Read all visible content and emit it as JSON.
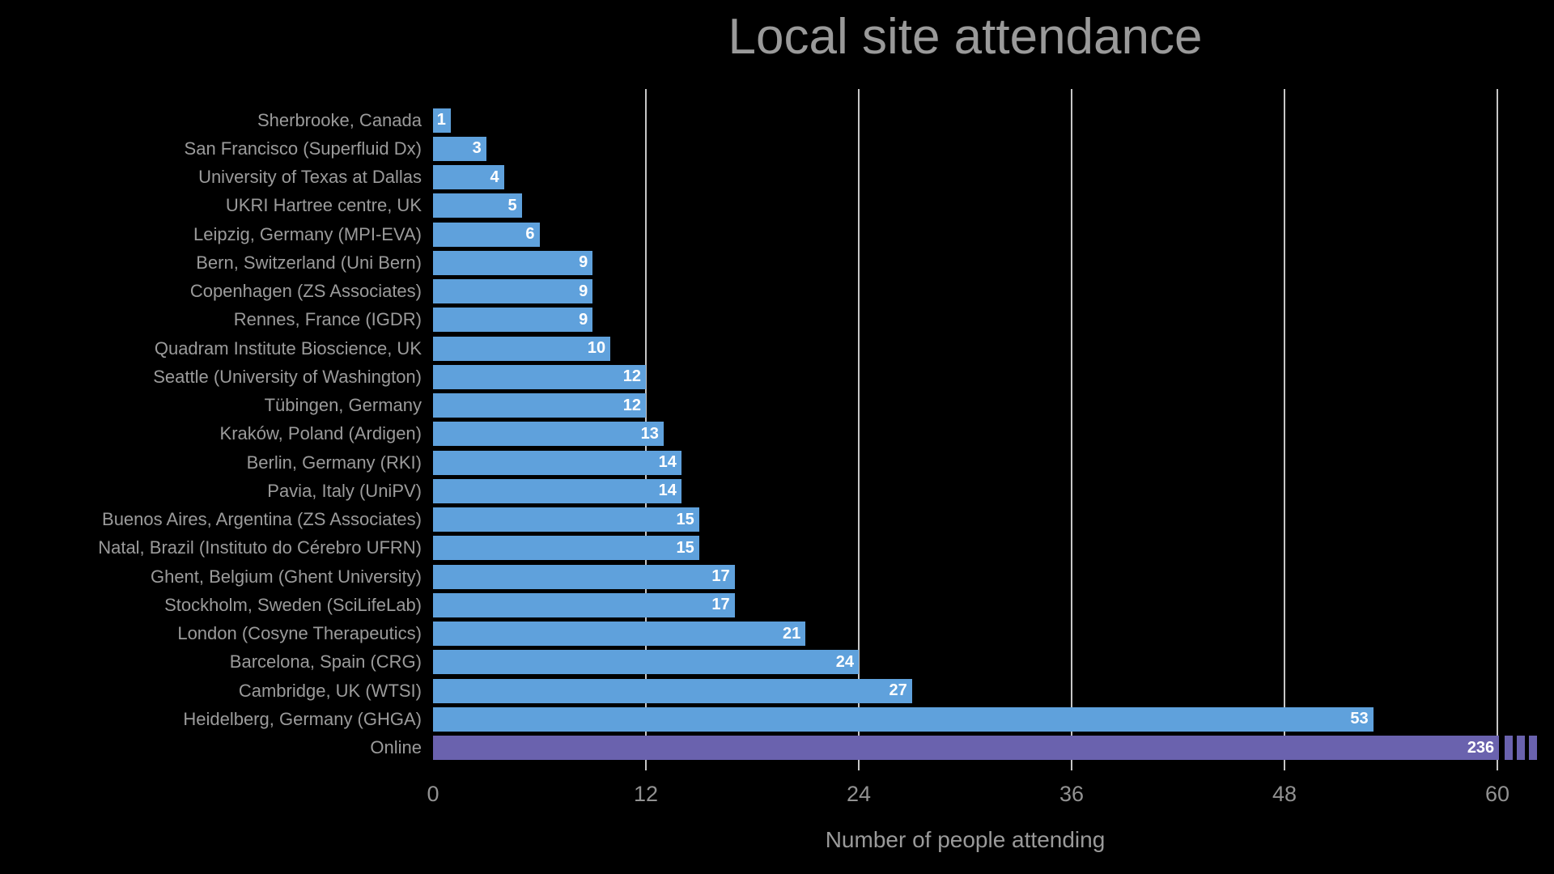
{
  "chart_data": {
    "type": "bar",
    "orientation": "horizontal",
    "title": "Local site attendance",
    "xlabel": "Number of people attending",
    "xlim": [
      0,
      60
    ],
    "xticks": [
      0,
      12,
      24,
      36,
      48,
      60
    ],
    "grid": "vertical gridlines at 12, 24, 36, 48, 60",
    "legend_position": "none",
    "categories": [
      "Sherbrooke, Canada",
      "San Francisco (Superfluid Dx)",
      "University of Texas at Dallas",
      "UKRI Hartree centre, UK",
      "Leipzig, Germany (MPI-EVA)",
      "Bern, Switzerland (Uni Bern)",
      "Copenhagen (ZS Associates)",
      "Rennes, France (IGDR)",
      "Quadram Institute Bioscience, UK",
      "Seattle (University of Washington)",
      "Tübingen, Germany",
      "Kraków, Poland (Ardigen)",
      "Berlin, Germany (RKI)",
      "Pavia, Italy (UniPV)",
      "Buenos Aires, Argentina (ZS Associates)",
      "Natal, Brazil (Instituto do Cérebro UFRN)",
      "Ghent, Belgium (Ghent University)",
      "Stockholm, Sweden (SciLifeLab)",
      "London (Cosyne Therapeutics)",
      "Barcelona, Spain (CRG)",
      "Cambridge, UK (WTSI)",
      "Heidelberg, Germany (GHGA)",
      "Online"
    ],
    "values": [
      1,
      3,
      4,
      5,
      6,
      9,
      9,
      9,
      10,
      12,
      12,
      13,
      14,
      14,
      15,
      15,
      17,
      17,
      21,
      24,
      27,
      53,
      236
    ],
    "clipped_bar": {
      "category": "Online",
      "value": 236,
      "clipped_at_axis_value": 60,
      "break_marks": 3
    },
    "colors": {
      "background": "#000000",
      "bar_default": "#5FA1DC",
      "bar_online": "#6A62AE",
      "value_label": "#ffffff",
      "text": "#9a9a9a",
      "gridline": "#c6c6c6"
    }
  }
}
